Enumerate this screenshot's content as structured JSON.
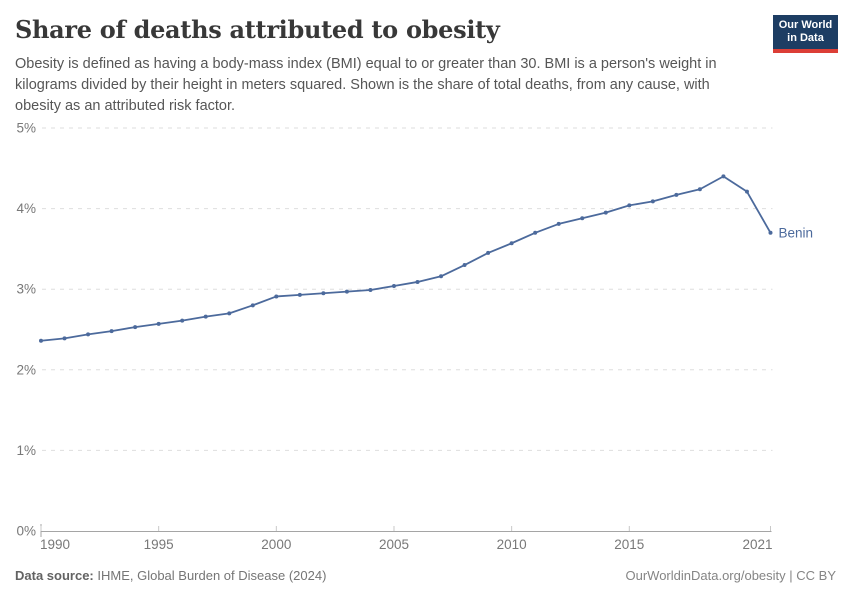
{
  "header": {
    "title": "Share of deaths attributed to obesity",
    "subtitle_lines": [
      "Obesity is defined as having a body-mass index (BMI) equal to or greater than 30. BMI is a person's weight in",
      "kilograms divided by their height in meters squared. Shown is the share of total deaths, from any cause, with",
      "obesity as an attributed risk factor."
    ],
    "logo": {
      "line1": "Our World",
      "line2": "in Data"
    }
  },
  "chart_data": {
    "type": "line",
    "title": "Share of deaths attributed to obesity",
    "xlabel": "",
    "ylabel": "",
    "x": [
      1990,
      1991,
      1992,
      1993,
      1994,
      1995,
      1996,
      1997,
      1998,
      1999,
      2000,
      2001,
      2002,
      2003,
      2004,
      2005,
      2006,
      2007,
      2008,
      2009,
      2010,
      2011,
      2012,
      2013,
      2014,
      2015,
      2016,
      2017,
      2018,
      2019,
      2020,
      2021
    ],
    "series": [
      {
        "name": "Benin",
        "color": "#4c6a9c",
        "values": [
          2.36,
          2.39,
          2.44,
          2.48,
          2.53,
          2.57,
          2.61,
          2.66,
          2.7,
          2.8,
          2.91,
          2.93,
          2.95,
          2.97,
          2.99,
          3.04,
          3.09,
          3.16,
          3.3,
          3.45,
          3.57,
          3.7,
          3.81,
          3.88,
          3.95,
          4.04,
          4.09,
          4.17,
          4.24,
          4.4,
          4.21,
          3.7
        ]
      }
    ],
    "ylim": [
      0,
      5
    ],
    "yticks": [
      0,
      1,
      2,
      3,
      4,
      5
    ],
    "ytick_suffix": "%",
    "xticks": [
      1990,
      1995,
      2000,
      2005,
      2010,
      2015,
      2021
    ],
    "grid": "horizontal-dashed",
    "legend": "entity-label-at-line-end"
  },
  "footer": {
    "source_label": "Data source:",
    "source_text": " IHME, Global Burden of Disease (2024)",
    "credit": "OurWorldinData.org/obesity | CC BY"
  },
  "colors": {
    "line": "#4c6a9c",
    "entity_label": "#4c6a9c",
    "gridline": "#dedede",
    "axis": "#a5a5a5",
    "tick": "#c8c8c8",
    "tick_label": "#787878",
    "logo_bg": "#1d3d63",
    "logo_bar": "#dc3e36"
  }
}
